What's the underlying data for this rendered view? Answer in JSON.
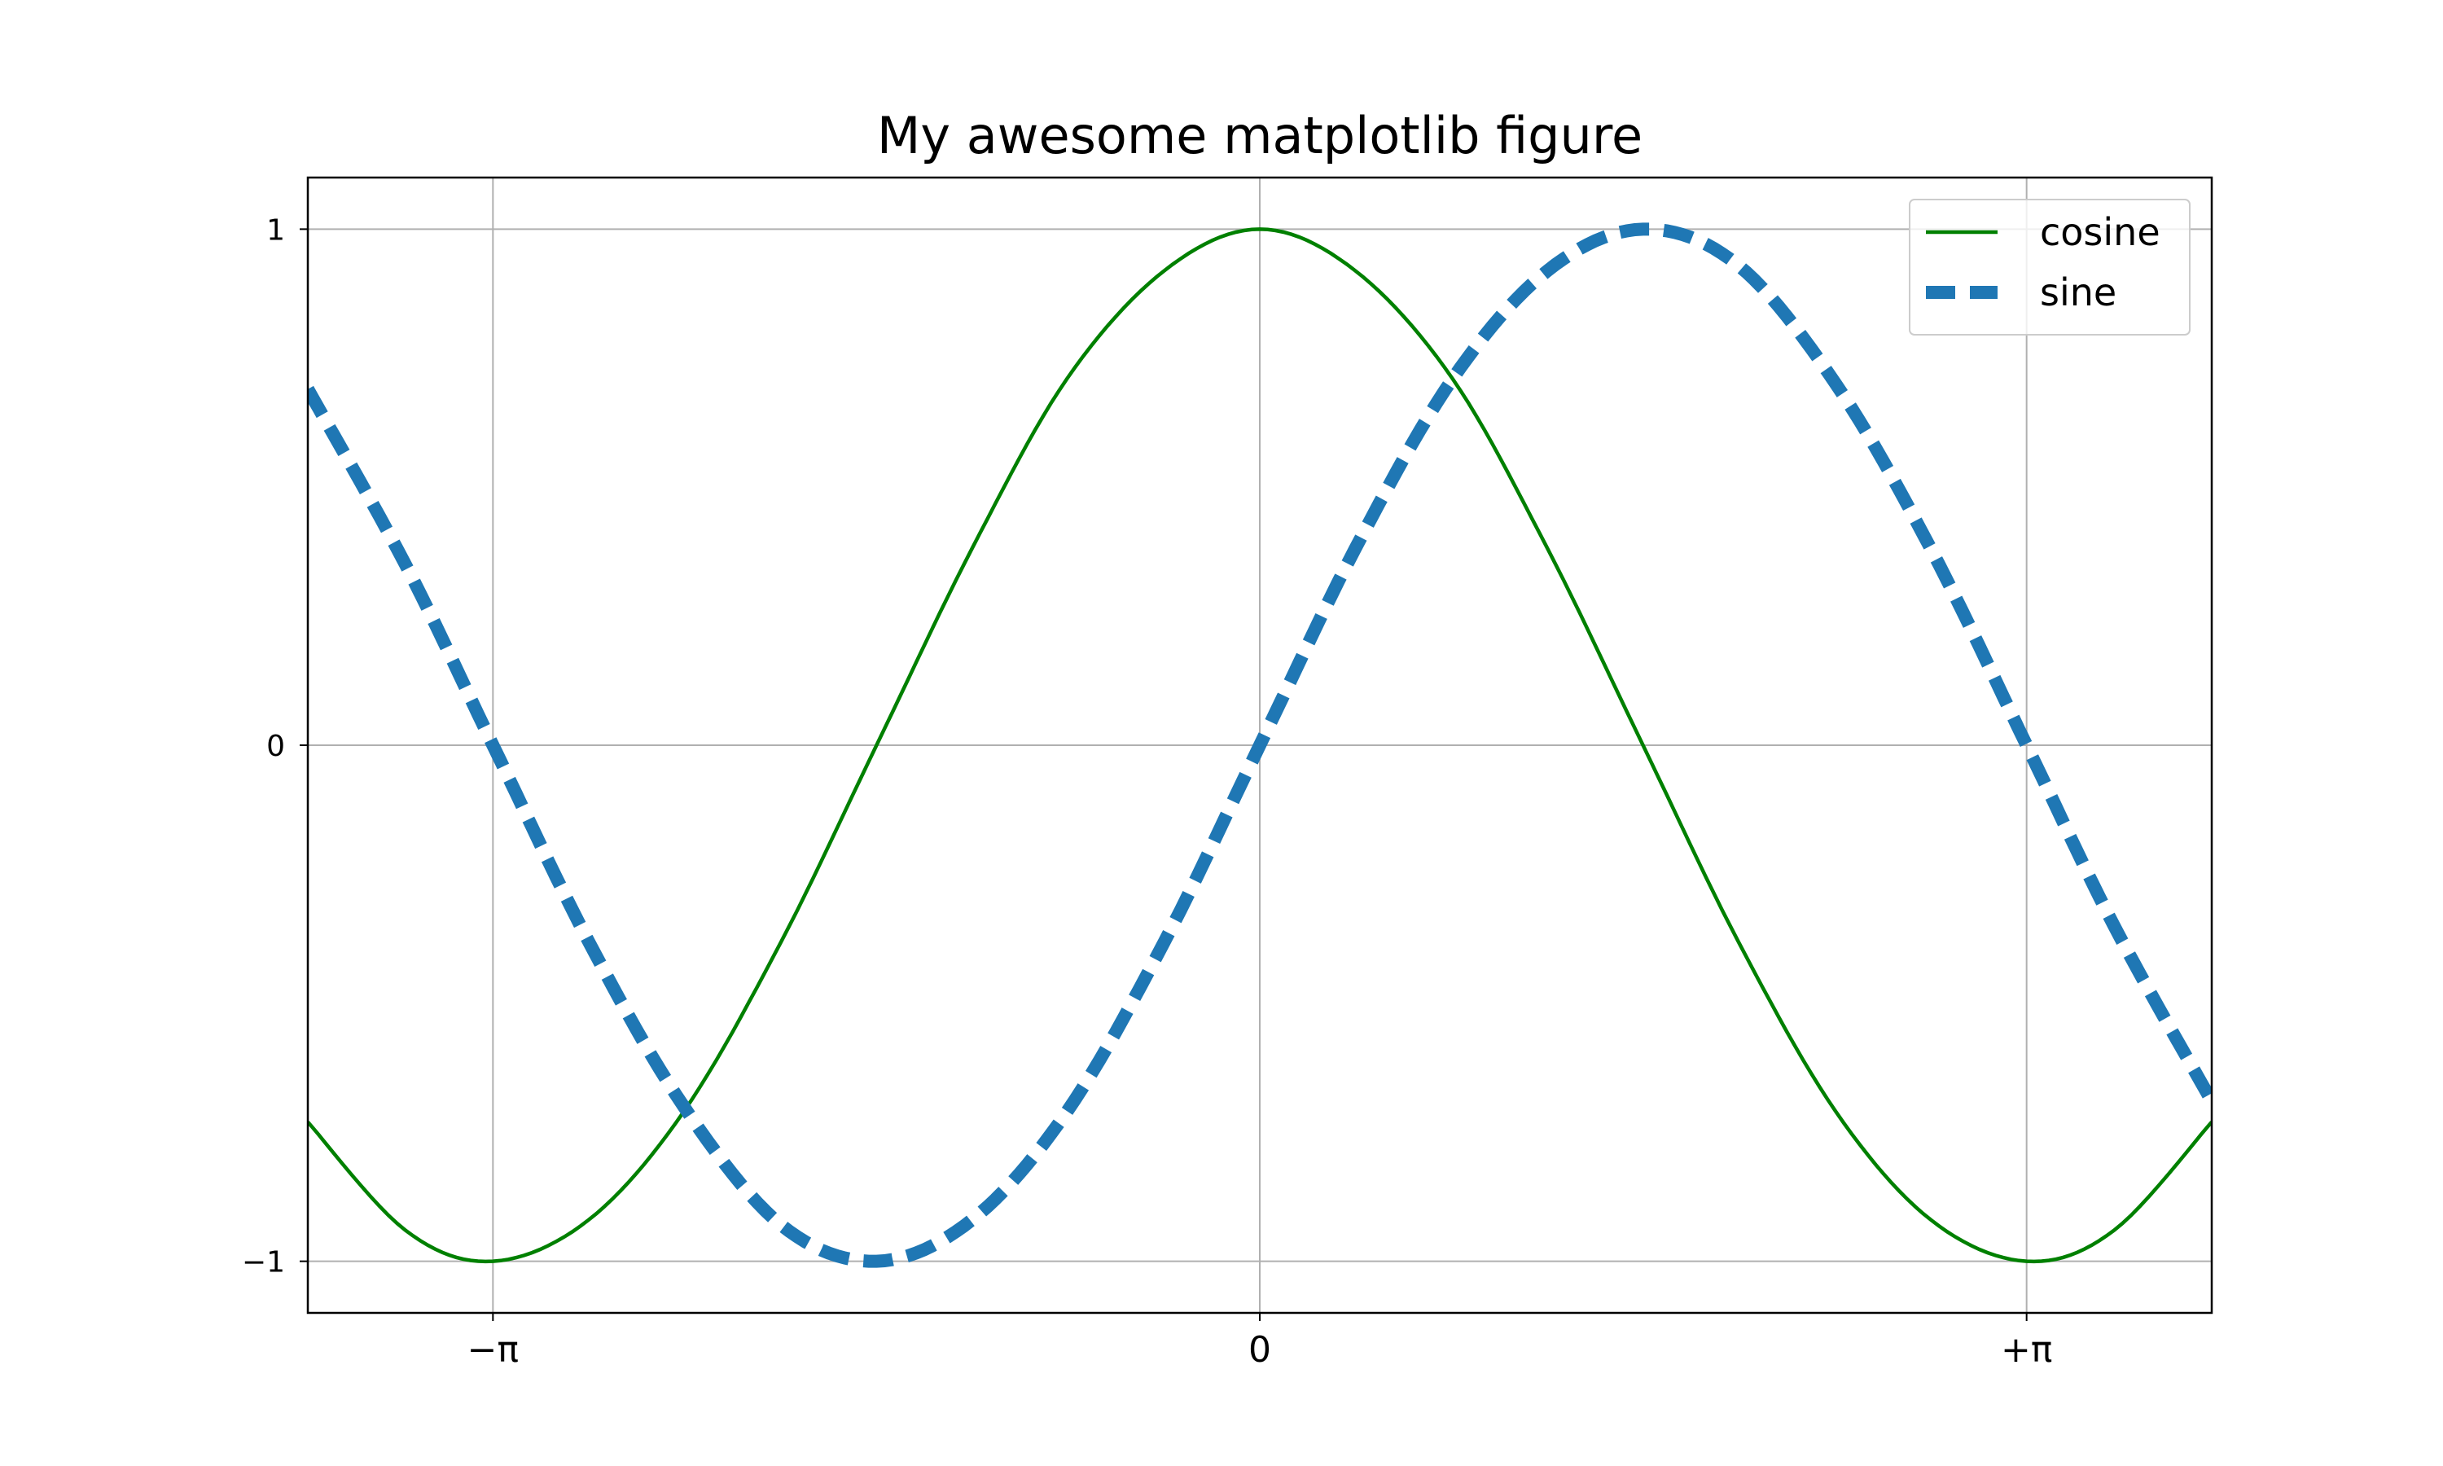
{
  "chart_data": {
    "type": "line",
    "title": "My awesome matplotlib figure",
    "xlabel": "",
    "ylabel": "",
    "xlim": [
      -3.9,
      3.9
    ],
    "ylim": [
      -1.1,
      1.1
    ],
    "xticks": [
      {
        "value": -3.14159265,
        "label": "−π"
      },
      {
        "value": 0,
        "label": "0"
      },
      {
        "value": 3.14159265,
        "label": "+π"
      }
    ],
    "yticks": [
      {
        "value": -1,
        "label": "−1"
      },
      {
        "value": 0,
        "label": "0"
      },
      {
        "value": 1,
        "label": "1"
      }
    ],
    "grid": true,
    "legend_position": "top-right",
    "series": [
      {
        "name": "cosine",
        "color": "#008000",
        "linestyle": "solid",
        "x": [
          -3.9,
          -3.5,
          -3.14159,
          -2.75,
          -2.36,
          -1.96,
          -1.57,
          -1.18,
          -0.79,
          -0.39,
          0,
          0.39,
          0.79,
          1.18,
          1.57,
          1.96,
          2.36,
          2.75,
          3.14159,
          3.5,
          3.9
        ],
        "y": [
          -0.73,
          -0.94,
          -1.0,
          -0.92,
          -0.71,
          -0.38,
          0.0,
          0.38,
          0.71,
          0.92,
          1.0,
          0.92,
          0.71,
          0.38,
          0.0,
          -0.38,
          -0.71,
          -0.92,
          -1.0,
          -0.94,
          -0.73
        ]
      },
      {
        "name": "sine",
        "color": "#1f77b4",
        "linestyle": "dashed",
        "x": [
          -3.9,
          -3.5,
          -3.14159,
          -2.75,
          -2.36,
          -1.96,
          -1.57,
          -1.18,
          -0.79,
          -0.39,
          0,
          0.39,
          0.79,
          1.18,
          1.57,
          1.96,
          2.36,
          2.75,
          3.14159,
          3.5,
          3.9
        ],
        "y": [
          0.69,
          0.35,
          0.0,
          -0.38,
          -0.7,
          -0.93,
          -1.0,
          -0.92,
          -0.71,
          -0.38,
          0.0,
          0.38,
          0.71,
          0.92,
          1.0,
          0.93,
          0.7,
          0.38,
          0.0,
          -0.35,
          -0.69
        ]
      }
    ]
  }
}
